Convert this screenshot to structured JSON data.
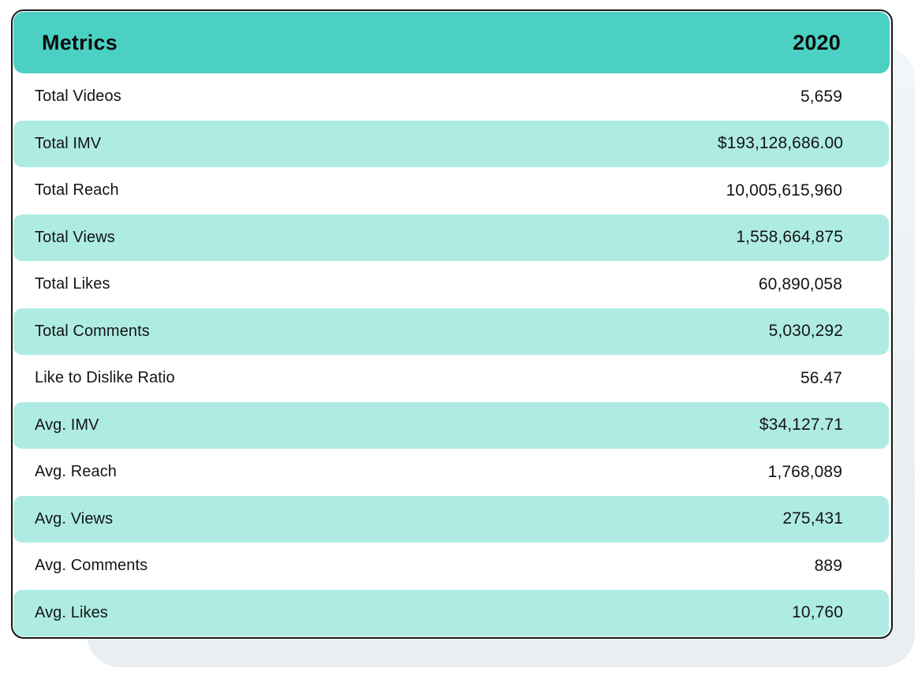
{
  "chart_data": {
    "type": "table",
    "title": "Metrics",
    "columns": [
      "Metrics",
      "2020"
    ],
    "rows": [
      [
        "Total Videos",
        "5,659"
      ],
      [
        "Total IMV",
        "$193,128,686.00"
      ],
      [
        "Total Reach",
        "10,005,615,960"
      ],
      [
        "Total Views",
        "1,558,664,875"
      ],
      [
        "Total Likes",
        "60,890,058"
      ],
      [
        "Total Comments",
        "5,030,292"
      ],
      [
        "Like to Dislike Ratio",
        "56.47"
      ],
      [
        "Avg. IMV",
        "$34,127.71"
      ],
      [
        "Avg. Reach",
        "1,768,089"
      ],
      [
        "Avg. Views",
        "275,431"
      ],
      [
        "Avg. Comments",
        "889"
      ],
      [
        "Avg. Likes",
        "10,760"
      ]
    ],
    "numeric_values": [
      5659,
      193128686.0,
      10005615960,
      1558664875,
      60890058,
      5030292,
      56.47,
      34127.71,
      1768089,
      275431,
      889,
      10760
    ]
  },
  "header": {
    "metrics_label": "Metrics",
    "year_label": "2020"
  },
  "rows": [
    {
      "label": "Total Videos",
      "value": "5,659"
    },
    {
      "label": "Total IMV",
      "value": "$193,128,686.00"
    },
    {
      "label": "Total Reach",
      "value": "10,005,615,960"
    },
    {
      "label": "Total Views",
      "value": "1,558,664,875"
    },
    {
      "label": "Total Likes",
      "value": "60,890,058"
    },
    {
      "label": "Total Comments",
      "value": "5,030,292"
    },
    {
      "label": "Like to Dislike Ratio",
      "value": "56.47"
    },
    {
      "label": "Avg. IMV",
      "value": "$34,127.71"
    },
    {
      "label": "Avg. Reach",
      "value": "1,768,089"
    },
    {
      "label": "Avg. Views",
      "value": "275,431"
    },
    {
      "label": "Avg. Comments",
      "value": "889"
    },
    {
      "label": "Avg. Likes",
      "value": "10,760"
    }
  ],
  "colors": {
    "header_bg": "#4bd1c4",
    "row_alt_bg": "#aeece3",
    "border": "#161616",
    "text": "#141414",
    "shadow": "#edf1f4"
  }
}
